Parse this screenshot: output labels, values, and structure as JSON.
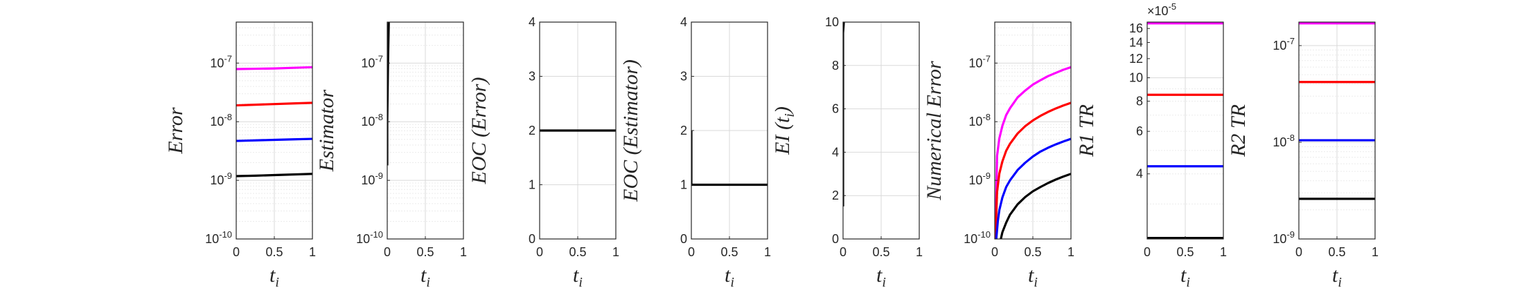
{
  "chart_data": [
    {
      "type": "line",
      "ylabel": "Error",
      "xlabel": "t_i",
      "yscale": "log",
      "xlim": [
        0,
        1
      ],
      "ylim": [
        1e-10,
        5e-07
      ],
      "xticks": [
        "0",
        "0.5",
        "1"
      ],
      "yticks": [
        {
          "value": 1e-10,
          "label": "10",
          "exp": "-10"
        },
        {
          "value": 1e-09,
          "label": "10",
          "exp": "-9"
        },
        {
          "value": 1e-08,
          "label": "10",
          "exp": "-8"
        },
        {
          "value": 1e-07,
          "label": "10",
          "exp": "-7"
        }
      ],
      "grid": true,
      "series": [
        {
          "color": "#ff00ff",
          "x": [
            0,
            0.25,
            0.5,
            0.75,
            1
          ],
          "y": [
            7.9e-08,
            8e-08,
            8.1e-08,
            8.3e-08,
            8.5e-08
          ]
        },
        {
          "color": "#ff0000",
          "x": [
            0,
            0.25,
            0.5,
            0.75,
            1
          ],
          "y": [
            1.9e-08,
            1.95e-08,
            2e-08,
            2.05e-08,
            2.1e-08
          ]
        },
        {
          "color": "#0000ff",
          "x": [
            0,
            0.25,
            0.5,
            0.75,
            1
          ],
          "y": [
            4.7e-09,
            4.8e-09,
            4.9e-09,
            5e-09,
            5.1e-09
          ]
        },
        {
          "color": "#000000",
          "x": [
            0,
            0.25,
            0.5,
            0.75,
            1
          ],
          "y": [
            1.18e-09,
            1.2e-09,
            1.23e-09,
            1.26e-09,
            1.29e-09
          ]
        }
      ]
    },
    {
      "type": "line",
      "ylabel": "Estimator",
      "xlabel": "t_i",
      "yscale": "log",
      "xlim": [
        0,
        1
      ],
      "ylim": [
        1e-10,
        5e-07
      ],
      "xticks": [
        "0",
        "0.5",
        "1"
      ],
      "yticks": [
        {
          "value": 1e-10,
          "label": "10",
          "exp": "-10"
        },
        {
          "value": 1e-09,
          "label": "10",
          "exp": "-9"
        },
        {
          "value": 1e-08,
          "label": "10",
          "exp": "-8"
        },
        {
          "value": 1e-07,
          "label": "10",
          "exp": "-7"
        }
      ],
      "grid": true,
      "series": [
        {
          "color": "#000000",
          "x": [
            0.0,
            0.0,
            0.01,
            0.02
          ],
          "y": [
            1.8e-09,
            1e-08,
            1e-07,
            5e-07
          ]
        }
      ]
    },
    {
      "type": "line",
      "ylabel": "EOC (Error)",
      "xlabel": "t_i",
      "yscale": "linear",
      "xlim": [
        0,
        1
      ],
      "ylim": [
        0,
        4
      ],
      "xticks": [
        "0",
        "0.5",
        "1"
      ],
      "yticks": [
        {
          "value": 0,
          "label": "0"
        },
        {
          "value": 1,
          "label": "1"
        },
        {
          "value": 2,
          "label": "2"
        },
        {
          "value": 3,
          "label": "3"
        },
        {
          "value": 4,
          "label": "4"
        }
      ],
      "grid": true,
      "series": [
        {
          "color": "#000000",
          "x": [
            0,
            1
          ],
          "y": [
            2,
            2
          ]
        }
      ]
    },
    {
      "type": "line",
      "ylabel": "EOC (Estimator)",
      "xlabel": "t_i",
      "yscale": "linear",
      "xlim": [
        0,
        1
      ],
      "ylim": [
        0,
        4
      ],
      "xticks": [
        "0",
        "0.5",
        "1"
      ],
      "yticks": [
        {
          "value": 0,
          "label": "0"
        },
        {
          "value": 1,
          "label": "1"
        },
        {
          "value": 2,
          "label": "2"
        },
        {
          "value": 3,
          "label": "3"
        },
        {
          "value": 4,
          "label": "4"
        }
      ],
      "grid": true,
      "series": [
        {
          "color": "#000000",
          "x": [
            0,
            0,
            0.01,
            1
          ],
          "y": [
            2,
            1,
            1,
            1
          ]
        }
      ]
    },
    {
      "type": "line",
      "ylabel": "EI (t_i)",
      "xlabel": "t_i",
      "yscale": "linear",
      "xlim": [
        0,
        1
      ],
      "ylim": [
        0,
        10
      ],
      "xticks": [
        "0",
        "0.5",
        "1"
      ],
      "yticks": [
        {
          "value": 0,
          "label": "0"
        },
        {
          "value": 2,
          "label": "2"
        },
        {
          "value": 4,
          "label": "4"
        },
        {
          "value": 6,
          "label": "6"
        },
        {
          "value": 8,
          "label": "8"
        },
        {
          "value": 10,
          "label": "10"
        }
      ],
      "grid": true,
      "series": [
        {
          "color": "#000000",
          "x": [
            0,
            0,
            0.01
          ],
          "y": [
            1.5,
            9.5,
            10
          ]
        }
      ]
    },
    {
      "type": "line",
      "ylabel": "Numerical Error",
      "xlabel": "t_i",
      "yscale": "log",
      "xlim": [
        0,
        1
      ],
      "ylim": [
        1e-10,
        5e-07
      ],
      "xticks": [
        "0",
        "0.5",
        "1"
      ],
      "yticks": [
        {
          "value": 1e-10,
          "label": "10",
          "exp": "-10"
        },
        {
          "value": 1e-09,
          "label": "10",
          "exp": "-9"
        },
        {
          "value": 1e-08,
          "label": "10",
          "exp": "-8"
        },
        {
          "value": 1e-07,
          "label": "10",
          "exp": "-7"
        }
      ],
      "grid": true,
      "series": [
        {
          "color": "#ff00ff",
          "x": [
            0.01,
            0.03,
            0.06,
            0.1,
            0.15,
            0.2,
            0.3,
            0.4,
            0.5,
            0.6,
            0.7,
            0.8,
            0.9,
            1.0
          ],
          "y": [
            1e-10,
            2.6e-09,
            5.2e-09,
            8.5e-09,
            1.3e-08,
            1.7e-08,
            2.6e-08,
            3.4e-08,
            4.3e-08,
            5.1e-08,
            6e-08,
            6.8e-08,
            7.7e-08,
            8.5e-08
          ]
        },
        {
          "color": "#ff0000",
          "x": [
            0.01,
            0.03,
            0.06,
            0.1,
            0.15,
            0.2,
            0.3,
            0.4,
            0.5,
            0.6,
            0.7,
            0.8,
            0.9,
            1.0
          ],
          "y": [
            1e-10,
            6.3e-10,
            1.3e-09,
            2.1e-09,
            3.2e-09,
            4.2e-09,
            6.3e-09,
            8.4e-09,
            1.05e-08,
            1.26e-08,
            1.47e-08,
            1.68e-08,
            1.89e-08,
            2.1e-08
          ]
        },
        {
          "color": "#0000ff",
          "x": [
            0.02,
            0.04,
            0.06,
            0.1,
            0.15,
            0.2,
            0.3,
            0.4,
            0.5,
            0.6,
            0.7,
            0.8,
            0.9,
            1.0
          ],
          "y": [
            1e-10,
            2e-10,
            3.1e-10,
            5.1e-10,
            7.7e-10,
            1e-09,
            1.5e-09,
            2e-09,
            2.55e-09,
            3.1e-09,
            3.6e-09,
            4.1e-09,
            4.6e-09,
            5.1e-09
          ]
        },
        {
          "color": "#000000",
          "x": [
            0.08,
            0.1,
            0.15,
            0.2,
            0.3,
            0.4,
            0.5,
            0.6,
            0.7,
            0.8,
            0.9,
            1.0
          ],
          "y": [
            1e-10,
            1.3e-10,
            1.9e-10,
            2.6e-10,
            3.9e-10,
            5.2e-10,
            6.5e-10,
            7.7e-10,
            9e-10,
            1.03e-09,
            1.16e-09,
            1.29e-09
          ]
        }
      ]
    },
    {
      "type": "line",
      "ylabel": "R1 TR",
      "xlabel": "t_i",
      "yscale": "log",
      "xlim": [
        0,
        1
      ],
      "ylim": [
        2.15e-05,
        0.00017
      ],
      "exponent": "×10",
      "exponent_power": "-5",
      "xticks": [
        "0",
        "0.5",
        "1"
      ],
      "yticks": [
        {
          "value": 4e-05,
          "label": "4"
        },
        {
          "value": 6e-05,
          "label": "6"
        },
        {
          "value": 8e-05,
          "label": "8"
        },
        {
          "value": 0.0001,
          "label": "10"
        },
        {
          "value": 0.00012,
          "label": "12"
        },
        {
          "value": 0.00014,
          "label": "14"
        },
        {
          "value": 0.00016,
          "label": "16"
        }
      ],
      "grid": true,
      "series": [
        {
          "color": "#ff00ff",
          "x": [
            0,
            1
          ],
          "y": [
            0.000168,
            0.000168
          ]
        },
        {
          "color": "#ff0000",
          "x": [
            0,
            1
          ],
          "y": [
            8.5e-05,
            8.5e-05
          ]
        },
        {
          "color": "#0000ff",
          "x": [
            0,
            1
          ],
          "y": [
            4.3e-05,
            4.3e-05
          ]
        },
        {
          "color": "#000000",
          "x": [
            0,
            1
          ],
          "y": [
            2.17e-05,
            2.17e-05
          ]
        }
      ]
    },
    {
      "type": "line",
      "ylabel": "R2 TR",
      "xlabel": "t_i",
      "yscale": "log",
      "xlim": [
        0,
        1
      ],
      "ylim": [
        1e-09,
        1.75e-07
      ],
      "xticks": [
        "0",
        "0.5",
        "1"
      ],
      "yticks": [
        {
          "value": 1e-09,
          "label": "10",
          "exp": "-9"
        },
        {
          "value": 1e-08,
          "label": "10",
          "exp": "-8"
        },
        {
          "value": 1e-07,
          "label": "10",
          "exp": "-7"
        }
      ],
      "grid": true,
      "series": [
        {
          "color": "#ff00ff",
          "x": [
            0,
            1
          ],
          "y": [
            1.7e-07,
            1.7e-07
          ]
        },
        {
          "color": "#ff0000",
          "x": [
            0,
            1
          ],
          "y": [
            4.2e-08,
            4.2e-08
          ]
        },
        {
          "color": "#0000ff",
          "x": [
            0,
            1
          ],
          "y": [
            1.05e-08,
            1.05e-08
          ]
        },
        {
          "color": "#000000",
          "x": [
            0,
            1
          ],
          "y": [
            2.6e-09,
            2.6e-09
          ]
        }
      ]
    }
  ]
}
